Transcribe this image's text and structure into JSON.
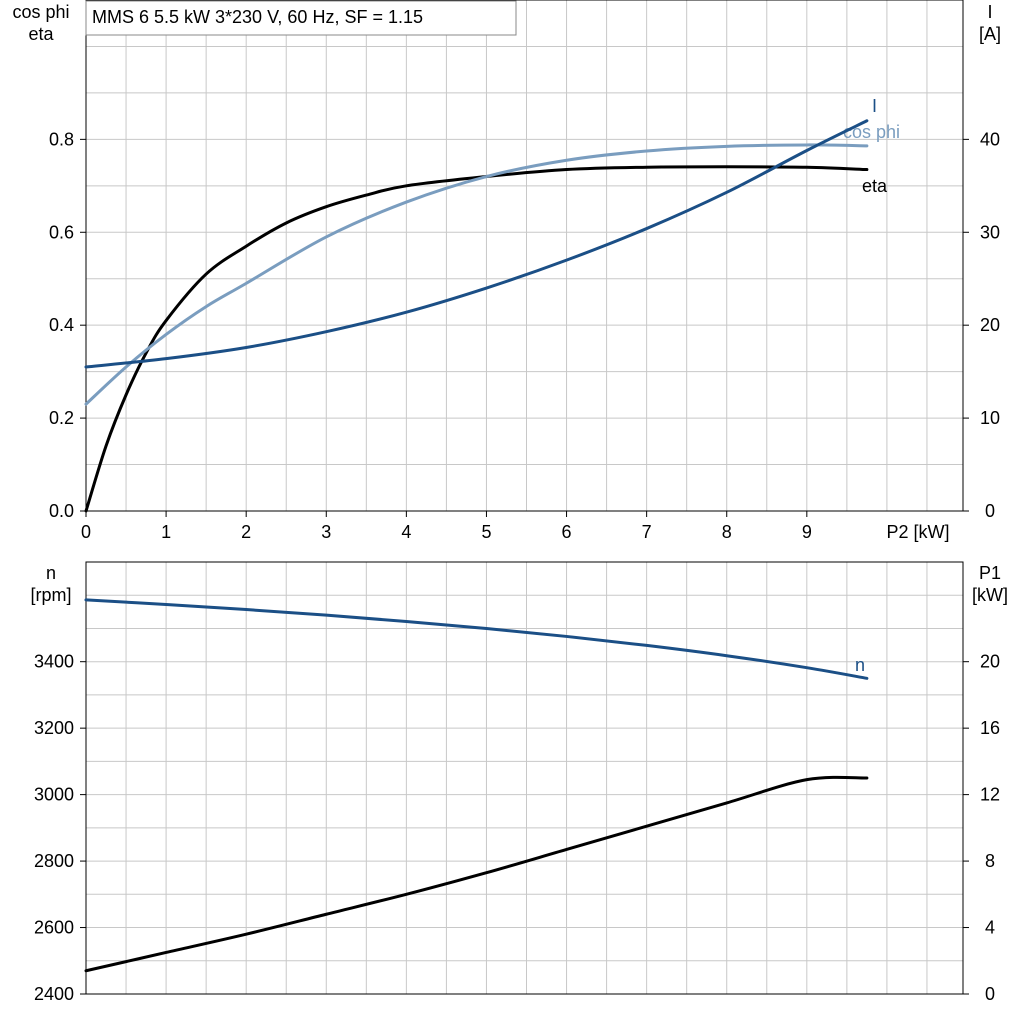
{
  "title": "MMS 6   5.5 kW   3*230 V, 60 Hz, SF = 1.15",
  "colors": {
    "I": "#1b4f86",
    "cos_phi": "#7a9dbf",
    "eta": "#000000",
    "n": "#1b4f86",
    "P1": "#000000",
    "grid": "#c8c8c8"
  },
  "chart_data": [
    {
      "type": "line",
      "xlabel": "P2 [kW]",
      "x_ticks": [
        "0",
        "1",
        "2",
        "3",
        "4",
        "5",
        "6",
        "7",
        "8",
        "9"
      ],
      "xlim": [
        0,
        10.95
      ],
      "y_left_label": [
        "cos phi",
        "eta"
      ],
      "y_left_ticks": [
        "0.0",
        "0.2",
        "0.4",
        "0.6",
        "0.8"
      ],
      "y_left_lim": [
        0,
        1.1
      ],
      "y_right_label": [
        "I",
        "[A]"
      ],
      "y_right_ticks": [
        "0",
        "10",
        "20",
        "30",
        "40"
      ],
      "y_right_lim": [
        0,
        55
      ],
      "grid": true,
      "series": [
        {
          "name": "eta",
          "axis": "left",
          "x": [
            0,
            0.25,
            0.5,
            0.75,
            1,
            1.5,
            2,
            2.5,
            3,
            3.5,
            4,
            5,
            6,
            7,
            8,
            9,
            9.75
          ],
          "y": [
            0,
            0.14,
            0.25,
            0.34,
            0.41,
            0.51,
            0.57,
            0.62,
            0.655,
            0.68,
            0.7,
            0.72,
            0.735,
            0.74,
            0.741,
            0.74,
            0.735
          ]
        },
        {
          "name": "cos phi",
          "axis": "left",
          "x": [
            0,
            0.5,
            1,
            1.5,
            2,
            3,
            4,
            5,
            6,
            7,
            8,
            9,
            9.75
          ],
          "y": [
            0.23,
            0.31,
            0.38,
            0.44,
            0.49,
            0.59,
            0.665,
            0.72,
            0.755,
            0.775,
            0.785,
            0.788,
            0.786
          ]
        },
        {
          "name": "I",
          "axis": "right",
          "x": [
            0,
            1,
            2,
            3,
            4,
            5,
            6,
            7,
            8,
            9,
            9.75
          ],
          "y": [
            15.5,
            16.4,
            17.6,
            19.3,
            21.4,
            24.0,
            27.0,
            30.4,
            34.3,
            38.8,
            42.0
          ]
        }
      ]
    },
    {
      "type": "line",
      "xlim": [
        0,
        10.95
      ],
      "y_left_label": [
        "n",
        "[rpm]"
      ],
      "y_left_ticks": [
        "2400",
        "2600",
        "2800",
        "3000",
        "3200",
        "3400"
      ],
      "y_left_lim": [
        2400,
        3700
      ],
      "y_right_label": [
        "P1",
        "[kW]"
      ],
      "y_right_ticks": [
        "0",
        "4",
        "8",
        "12",
        "16",
        "20"
      ],
      "y_right_lim": [
        0,
        26
      ],
      "grid": true,
      "series": [
        {
          "name": "n",
          "axis": "left",
          "x": [
            0,
            1,
            2,
            3,
            4,
            5,
            6,
            7,
            8,
            9,
            9.75
          ],
          "y": [
            3586,
            3572,
            3557,
            3540,
            3521,
            3500,
            3476,
            3449,
            3418,
            3382,
            3350
          ]
        },
        {
          "name": "P1",
          "axis": "right",
          "x": [
            0,
            1,
            2,
            3,
            4,
            5,
            6,
            7,
            8,
            9,
            9.75
          ],
          "y": [
            1.4,
            2.5,
            3.6,
            4.8,
            6.0,
            7.3,
            8.7,
            10.1,
            11.5,
            12.9,
            13.0
          ]
        }
      ]
    }
  ]
}
